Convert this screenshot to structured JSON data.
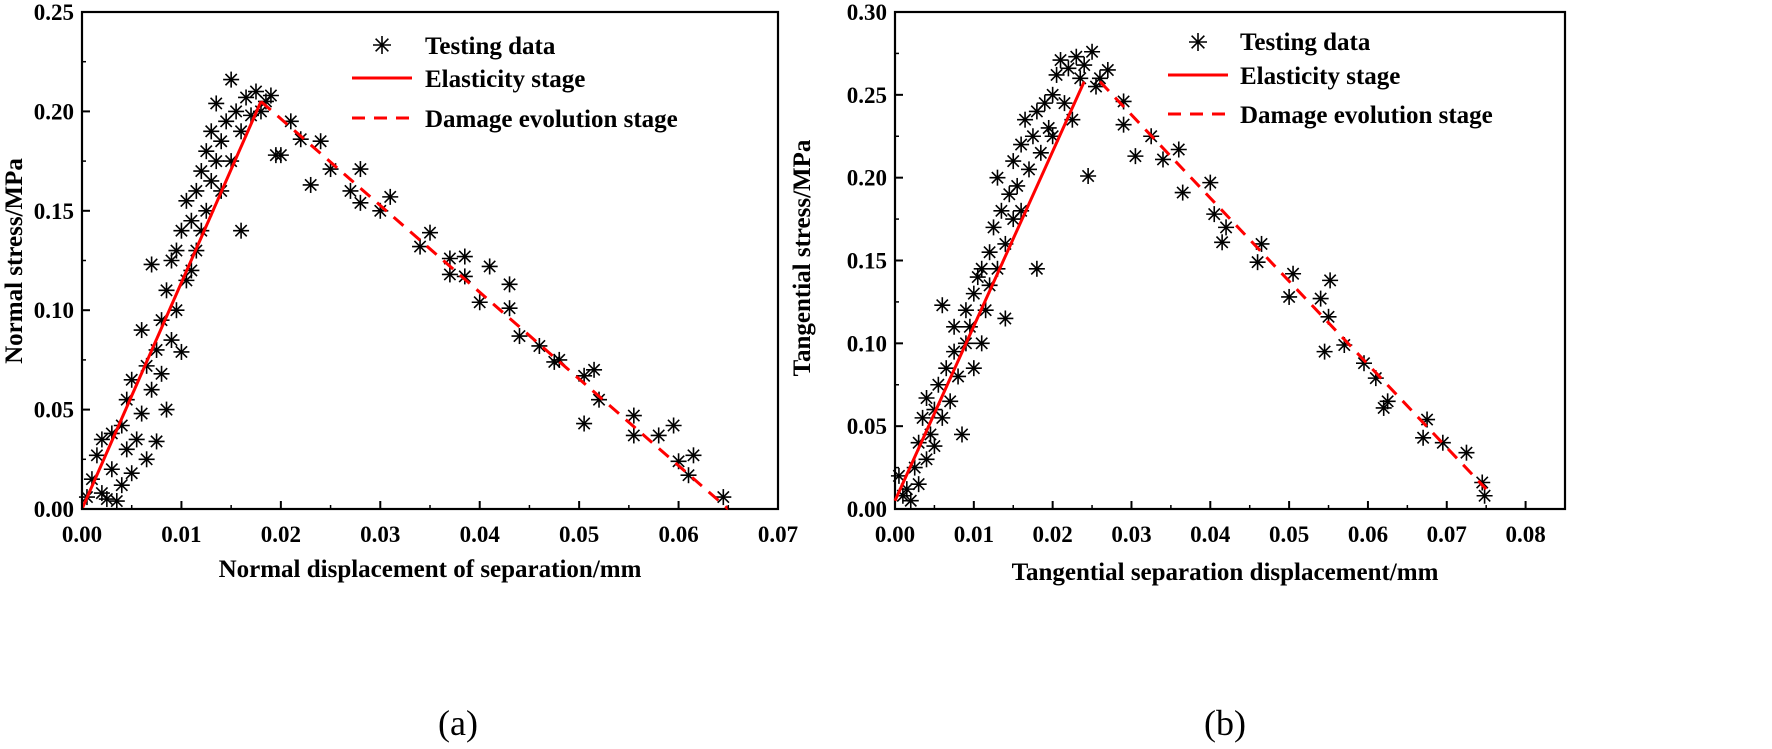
{
  "chart_data": [
    {
      "type": "scatter",
      "panel_label": "(a)",
      "xlabel": "Normal displacement of separation/mm",
      "ylabel": "Normal stress/MPa",
      "xlim": [
        0,
        0.07
      ],
      "ylim": [
        0,
        0.25
      ],
      "xticks": [
        0.0,
        0.01,
        0.02,
        0.03,
        0.04,
        0.05,
        0.06,
        0.07
      ],
      "yticks": [
        0.0,
        0.05,
        0.1,
        0.15,
        0.2,
        0.25
      ],
      "xtick_labels": [
        "0.00",
        "0.01",
        "0.02",
        "0.03",
        "0.04",
        "0.05",
        "0.06",
        "0.07"
      ],
      "ytick_labels": [
        "0.00",
        "0.05",
        "0.10",
        "0.15",
        "0.20",
        "0.25"
      ],
      "legend_position": "top-right",
      "legend": [
        {
          "label": "Testing data",
          "style": "asterisk",
          "color": "#000000"
        },
        {
          "label": "Elasticity stage",
          "style": "solid",
          "color": "#ff0000"
        },
        {
          "label": "Damage evolution stage",
          "style": "dashed",
          "color": "#ff0000"
        }
      ],
      "series": [
        {
          "name": "Elasticity stage",
          "style": "solid",
          "color": "#ff0000",
          "x": [
            0.0,
            0.018
          ],
          "y": [
            0.0,
            0.205
          ]
        },
        {
          "name": "Damage evolution stage",
          "style": "dashed",
          "color": "#ff0000",
          "x": [
            0.018,
            0.065
          ],
          "y": [
            0.205,
            0.0
          ]
        },
        {
          "name": "Testing data",
          "style": "asterisk",
          "color": "#000000",
          "points": [
            [
              0.0005,
              0.006
            ],
            [
              0.001,
              0.015
            ],
            [
              0.0015,
              0.027
            ],
            [
              0.002,
              0.035
            ],
            [
              0.002,
              0.008
            ],
            [
              0.0025,
              0.005
            ],
            [
              0.003,
              0.02
            ],
            [
              0.003,
              0.038
            ],
            [
              0.0035,
              0.004
            ],
            [
              0.004,
              0.042
            ],
            [
              0.004,
              0.012
            ],
            [
              0.0045,
              0.03
            ],
            [
              0.0045,
              0.055
            ],
            [
              0.005,
              0.018
            ],
            [
              0.005,
              0.065
            ],
            [
              0.0055,
              0.035
            ],
            [
              0.006,
              0.09
            ],
            [
              0.006,
              0.048
            ],
            [
              0.0065,
              0.072
            ],
            [
              0.0065,
              0.025
            ],
            [
              0.007,
              0.123
            ],
            [
              0.007,
              0.06
            ],
            [
              0.0075,
              0.08
            ],
            [
              0.0075,
              0.034
            ],
            [
              0.008,
              0.095
            ],
            [
              0.008,
              0.068
            ],
            [
              0.0085,
              0.11
            ],
            [
              0.0085,
              0.05
            ],
            [
              0.009,
              0.125
            ],
            [
              0.009,
              0.085
            ],
            [
              0.0095,
              0.13
            ],
            [
              0.0095,
              0.1
            ],
            [
              0.01,
              0.14
            ],
            [
              0.01,
              0.079
            ],
            [
              0.0105,
              0.155
            ],
            [
              0.0105,
              0.115
            ],
            [
              0.011,
              0.145
            ],
            [
              0.011,
              0.12
            ],
            [
              0.0115,
              0.16
            ],
            [
              0.0115,
              0.13
            ],
            [
              0.012,
              0.17
            ],
            [
              0.012,
              0.14
            ],
            [
              0.0125,
              0.15
            ],
            [
              0.0125,
              0.18
            ],
            [
              0.013,
              0.165
            ],
            [
              0.013,
              0.19
            ],
            [
              0.0135,
              0.175
            ],
            [
              0.0135,
              0.204
            ],
            [
              0.014,
              0.185
            ],
            [
              0.014,
              0.16
            ],
            [
              0.0145,
              0.195
            ],
            [
              0.015,
              0.216
            ],
            [
              0.015,
              0.175
            ],
            [
              0.0155,
              0.2
            ],
            [
              0.016,
              0.14
            ],
            [
              0.016,
              0.19
            ],
            [
              0.0165,
              0.207
            ],
            [
              0.017,
              0.198
            ],
            [
              0.0175,
              0.21
            ],
            [
              0.018,
              0.2
            ],
            [
              0.0185,
              0.205
            ],
            [
              0.019,
              0.208
            ],
            [
              0.0195,
              0.178
            ],
            [
              0.02,
              0.178
            ],
            [
              0.021,
              0.195
            ],
            [
              0.022,
              0.186
            ],
            [
              0.023,
              0.163
            ],
            [
              0.024,
              0.185
            ],
            [
              0.025,
              0.171
            ],
            [
              0.027,
              0.16
            ],
            [
              0.028,
              0.154
            ],
            [
              0.028,
              0.171
            ],
            [
              0.03,
              0.15
            ],
            [
              0.031,
              0.157
            ],
            [
              0.034,
              0.132
            ],
            [
              0.035,
              0.139
            ],
            [
              0.037,
              0.126
            ],
            [
              0.037,
              0.118
            ],
            [
              0.0385,
              0.127
            ],
            [
              0.0385,
              0.117
            ],
            [
              0.04,
              0.104
            ],
            [
              0.041,
              0.122
            ],
            [
              0.043,
              0.113
            ],
            [
              0.043,
              0.101
            ],
            [
              0.044,
              0.087
            ],
            [
              0.046,
              0.082
            ],
            [
              0.0475,
              0.074
            ],
            [
              0.048,
              0.075
            ],
            [
              0.0505,
              0.067
            ],
            [
              0.0505,
              0.043
            ],
            [
              0.0515,
              0.07
            ],
            [
              0.052,
              0.055
            ],
            [
              0.0555,
              0.047
            ],
            [
              0.0555,
              0.037
            ],
            [
              0.058,
              0.037
            ],
            [
              0.0595,
              0.042
            ],
            [
              0.06,
              0.024
            ],
            [
              0.061,
              0.017
            ],
            [
              0.0615,
              0.027
            ],
            [
              0.0645,
              0.006
            ]
          ]
        }
      ]
    },
    {
      "type": "scatter",
      "panel_label": "(b)",
      "xlabel": "Tangential separation displacement/mm",
      "ylabel": "Tangential stress/MPa",
      "xlim": [
        0,
        0.085
      ],
      "ylim": [
        0,
        0.3
      ],
      "xticks": [
        0.0,
        0.01,
        0.02,
        0.03,
        0.04,
        0.05,
        0.06,
        0.07,
        0.08
      ],
      "yticks": [
        0.0,
        0.05,
        0.1,
        0.15,
        0.2,
        0.25,
        0.3
      ],
      "xtick_labels": [
        "0.00",
        "0.01",
        "0.02",
        "0.03",
        "0.04",
        "0.05",
        "0.06",
        "0.07",
        "0.08"
      ],
      "ytick_labels": [
        "0.00",
        "0.05",
        "0.10",
        "0.15",
        "0.20",
        "0.25",
        "0.30"
      ],
      "legend_position": "top-right",
      "legend": [
        {
          "label": "Testing data",
          "style": "asterisk",
          "color": "#000000"
        },
        {
          "label": "Elasticity stage",
          "style": "solid",
          "color": "#ff0000"
        },
        {
          "label": "Damage evolution stage",
          "style": "dashed",
          "color": "#ff0000"
        }
      ],
      "series": [
        {
          "name": "Elasticity stage",
          "style": "solid",
          "color": "#ff0000",
          "x": [
            0.0,
            0.024
          ],
          "y": [
            0.005,
            0.258
          ]
        },
        {
          "name": "Damage evolution stage",
          "style": "dashed",
          "color": "#ff0000",
          "x": [
            0.026,
            0.075
          ],
          "y": [
            0.258,
            0.012
          ]
        },
        {
          "name": "Testing data",
          "style": "asterisk",
          "color": "#000000",
          "points": [
            [
              0.0005,
              0.02
            ],
            [
              0.001,
              0.008
            ],
            [
              0.0015,
              0.012
            ],
            [
              0.002,
              0.005
            ],
            [
              0.0025,
              0.025
            ],
            [
              0.003,
              0.04
            ],
            [
              0.003,
              0.015
            ],
            [
              0.0035,
              0.055
            ],
            [
              0.004,
              0.03
            ],
            [
              0.004,
              0.067
            ],
            [
              0.0045,
              0.045
            ],
            [
              0.005,
              0.06
            ],
            [
              0.005,
              0.038
            ],
            [
              0.0055,
              0.075
            ],
            [
              0.006,
              0.123
            ],
            [
              0.006,
              0.055
            ],
            [
              0.0065,
              0.085
            ],
            [
              0.007,
              0.065
            ],
            [
              0.0075,
              0.095
            ],
            [
              0.0075,
              0.11
            ],
            [
              0.008,
              0.08
            ],
            [
              0.0085,
              0.045
            ],
            [
              0.009,
              0.12
            ],
            [
              0.009,
              0.1
            ],
            [
              0.0095,
              0.11
            ],
            [
              0.01,
              0.085
            ],
            [
              0.01,
              0.13
            ],
            [
              0.0105,
              0.14
            ],
            [
              0.011,
              0.1
            ],
            [
              0.011,
              0.145
            ],
            [
              0.0115,
              0.12
            ],
            [
              0.012,
              0.155
            ],
            [
              0.012,
              0.135
            ],
            [
              0.0125,
              0.17
            ],
            [
              0.013,
              0.2
            ],
            [
              0.013,
              0.145
            ],
            [
              0.0135,
              0.18
            ],
            [
              0.014,
              0.16
            ],
            [
              0.014,
              0.115
            ],
            [
              0.0145,
              0.19
            ],
            [
              0.015,
              0.175
            ],
            [
              0.015,
              0.21
            ],
            [
              0.0155,
              0.195
            ],
            [
              0.016,
              0.22
            ],
            [
              0.016,
              0.18
            ],
            [
              0.0165,
              0.235
            ],
            [
              0.017,
              0.205
            ],
            [
              0.0175,
              0.225
            ],
            [
              0.018,
              0.145
            ],
            [
              0.018,
              0.24
            ],
            [
              0.0185,
              0.215
            ],
            [
              0.019,
              0.245
            ],
            [
              0.0195,
              0.23
            ],
            [
              0.02,
              0.25
            ],
            [
              0.02,
              0.225
            ],
            [
              0.0205,
              0.262
            ],
            [
              0.021,
              0.271
            ],
            [
              0.0215,
              0.245
            ],
            [
              0.022,
              0.266
            ],
            [
              0.0225,
              0.235
            ],
            [
              0.023,
              0.273
            ],
            [
              0.0235,
              0.26
            ],
            [
              0.024,
              0.268
            ],
            [
              0.0245,
              0.201
            ],
            [
              0.025,
              0.276
            ],
            [
              0.0255,
              0.255
            ],
            [
              0.026,
              0.26
            ],
            [
              0.027,
              0.265
            ],
            [
              0.029,
              0.246
            ],
            [
              0.029,
              0.232
            ],
            [
              0.0305,
              0.213
            ],
            [
              0.0325,
              0.225
            ],
            [
              0.034,
              0.211
            ],
            [
              0.036,
              0.217
            ],
            [
              0.0365,
              0.191
            ],
            [
              0.04,
              0.197
            ],
            [
              0.0405,
              0.178
            ],
            [
              0.0415,
              0.161
            ],
            [
              0.042,
              0.17
            ],
            [
              0.046,
              0.149
            ],
            [
              0.0465,
              0.16
            ],
            [
              0.05,
              0.128
            ],
            [
              0.0505,
              0.142
            ],
            [
              0.054,
              0.127
            ],
            [
              0.0545,
              0.095
            ],
            [
              0.055,
              0.116
            ],
            [
              0.0552,
              0.138
            ],
            [
              0.057,
              0.099
            ],
            [
              0.0595,
              0.088
            ],
            [
              0.061,
              0.079
            ],
            [
              0.062,
              0.061
            ],
            [
              0.0625,
              0.065
            ],
            [
              0.067,
              0.043
            ],
            [
              0.0675,
              0.054
            ],
            [
              0.0695,
              0.04
            ],
            [
              0.0725,
              0.034
            ],
            [
              0.0745,
              0.016
            ],
            [
              0.0748,
              0.008
            ]
          ]
        }
      ]
    }
  ]
}
